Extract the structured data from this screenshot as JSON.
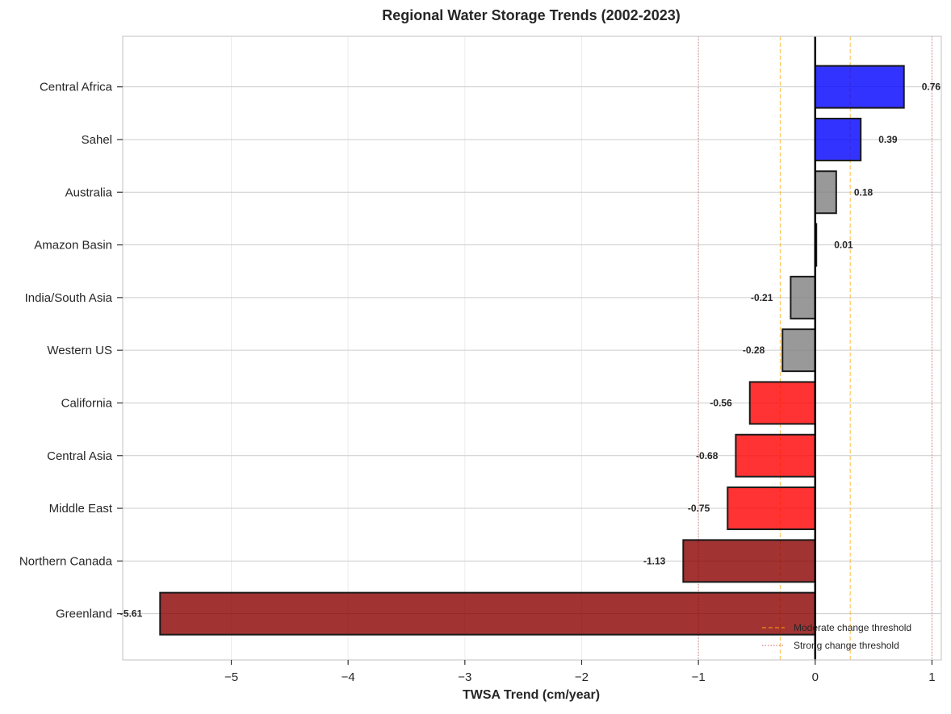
{
  "chart_data": {
    "type": "bar",
    "orientation": "horizontal",
    "title": "Regional Water Storage Trends (2002-2023)",
    "xlabel": "TWSA Trend (cm/year)",
    "ylabel": "",
    "xlim": [
      -5.93,
      1.08
    ],
    "xticks": [
      -5,
      -4,
      -3,
      -2,
      -1,
      0,
      1
    ],
    "xtick_labels": [
      "−5",
      "−4",
      "−3",
      "−2",
      "−1",
      "0",
      "1"
    ],
    "grid": true,
    "legend_position": "lower-right",
    "categories": [
      "Central Africa",
      "Sahel",
      "Australia",
      "Amazon Basin",
      "India/South Asia",
      "Western US",
      "California",
      "Central Asia",
      "Middle East",
      "Northern Canada",
      "Greenland"
    ],
    "values": [
      0.76,
      0.39,
      0.18,
      0.01,
      -0.21,
      -0.28,
      -0.56,
      -0.68,
      -0.75,
      -1.13,
      -5.61
    ],
    "value_labels": [
      "0.76",
      "0.39",
      "0.18",
      "0.01",
      "-0.21",
      "-0.28",
      "-0.56",
      "-0.68",
      "-0.75",
      "-1.13",
      "-5.61"
    ],
    "bar_colors": [
      "#0000ff",
      "#0000ff",
      "#808080",
      "#808080",
      "#808080",
      "#808080",
      "#ff0000",
      "#ff0000",
      "#ff0000",
      "#8b0000",
      "#8b0000"
    ],
    "reference_lines": [
      {
        "name": "Moderate change threshold",
        "values": [
          -0.3,
          0.3
        ],
        "color": "#ffa500",
        "style": "dashed"
      },
      {
        "name": "Strong change threshold",
        "values": [
          -1.0,
          1.0
        ],
        "color": "#cd5c5c",
        "style": "dotted"
      }
    ],
    "zero_line_color": "#000000"
  }
}
